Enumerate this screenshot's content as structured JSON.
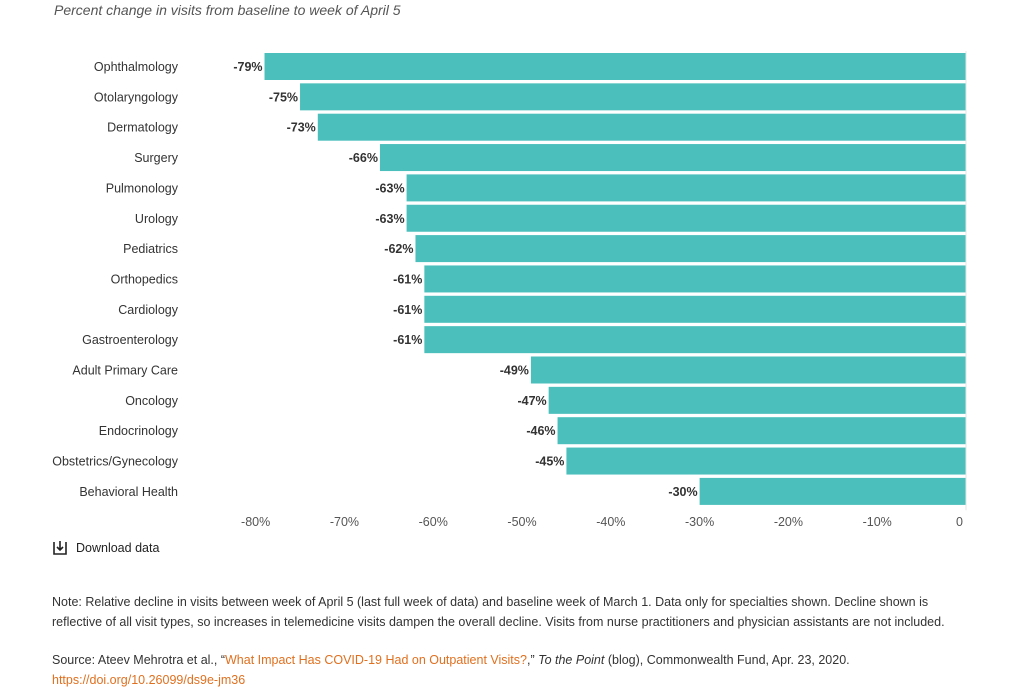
{
  "subtitle": "Percent change in visits from baseline to week of April 5",
  "download_label": "Download data",
  "note": "Note: Relative decline in visits between week of April 5 (last full week of data) and baseline week of March 1. Data only for specialties shown. Decline shown is reflective of all visit types, so increases in telemedicine visits dampen the overall decline. Visits from nurse practitioners and physician assistants are not included.",
  "source": {
    "prefix": "Source: Ateev Mehrotra et al., “",
    "link_text": "What Impact Has COVID-19 Had on Outpatient Visits?",
    "after_link": ",” ",
    "publication": "To the Point",
    "suffix": " (blog), Commonwealth Fund, Apr. 23, 2020. ",
    "doi": "https://doi.org/10.26099/ds9e-jm36"
  },
  "colors": {
    "bar": "#4bbfbb",
    "link": "#e0701f"
  },
  "icons": {
    "download": "download-icon"
  },
  "chart_data": {
    "type": "bar",
    "orientation": "horizontal",
    "categories": [
      "Ophthalmology",
      "Otolaryngology",
      "Dermatology",
      "Surgery",
      "Pulmonology",
      "Urology",
      "Pediatrics",
      "Orthopedics",
      "Cardiology",
      "Gastroenterology",
      "Adult Primary Care",
      "Oncology",
      "Endocrinology",
      "Obstetrics/Gynecology",
      "Behavioral Health"
    ],
    "values": [
      -79,
      -75,
      -73,
      -66,
      -63,
      -63,
      -62,
      -61,
      -61,
      -61,
      -49,
      -47,
      -46,
      -45,
      -30
    ],
    "value_labels": [
      "-79%",
      "-75%",
      "-73%",
      "-66%",
      "-63%",
      "-63%",
      "-62%",
      "-61%",
      "-61%",
      "-61%",
      "-49%",
      "-47%",
      "-46%",
      "-45%",
      "-30%"
    ],
    "xlim": [
      -83,
      0
    ],
    "x_ticks": [
      -80,
      -70,
      -60,
      -50,
      -40,
      -30,
      -20,
      -10,
      0
    ],
    "x_tick_labels": [
      "-80%",
      "-70%",
      "-60%",
      "-50%",
      "-40%",
      "-30%",
      "-20%",
      "-10%",
      "0"
    ],
    "grid": false,
    "legend": "none"
  }
}
